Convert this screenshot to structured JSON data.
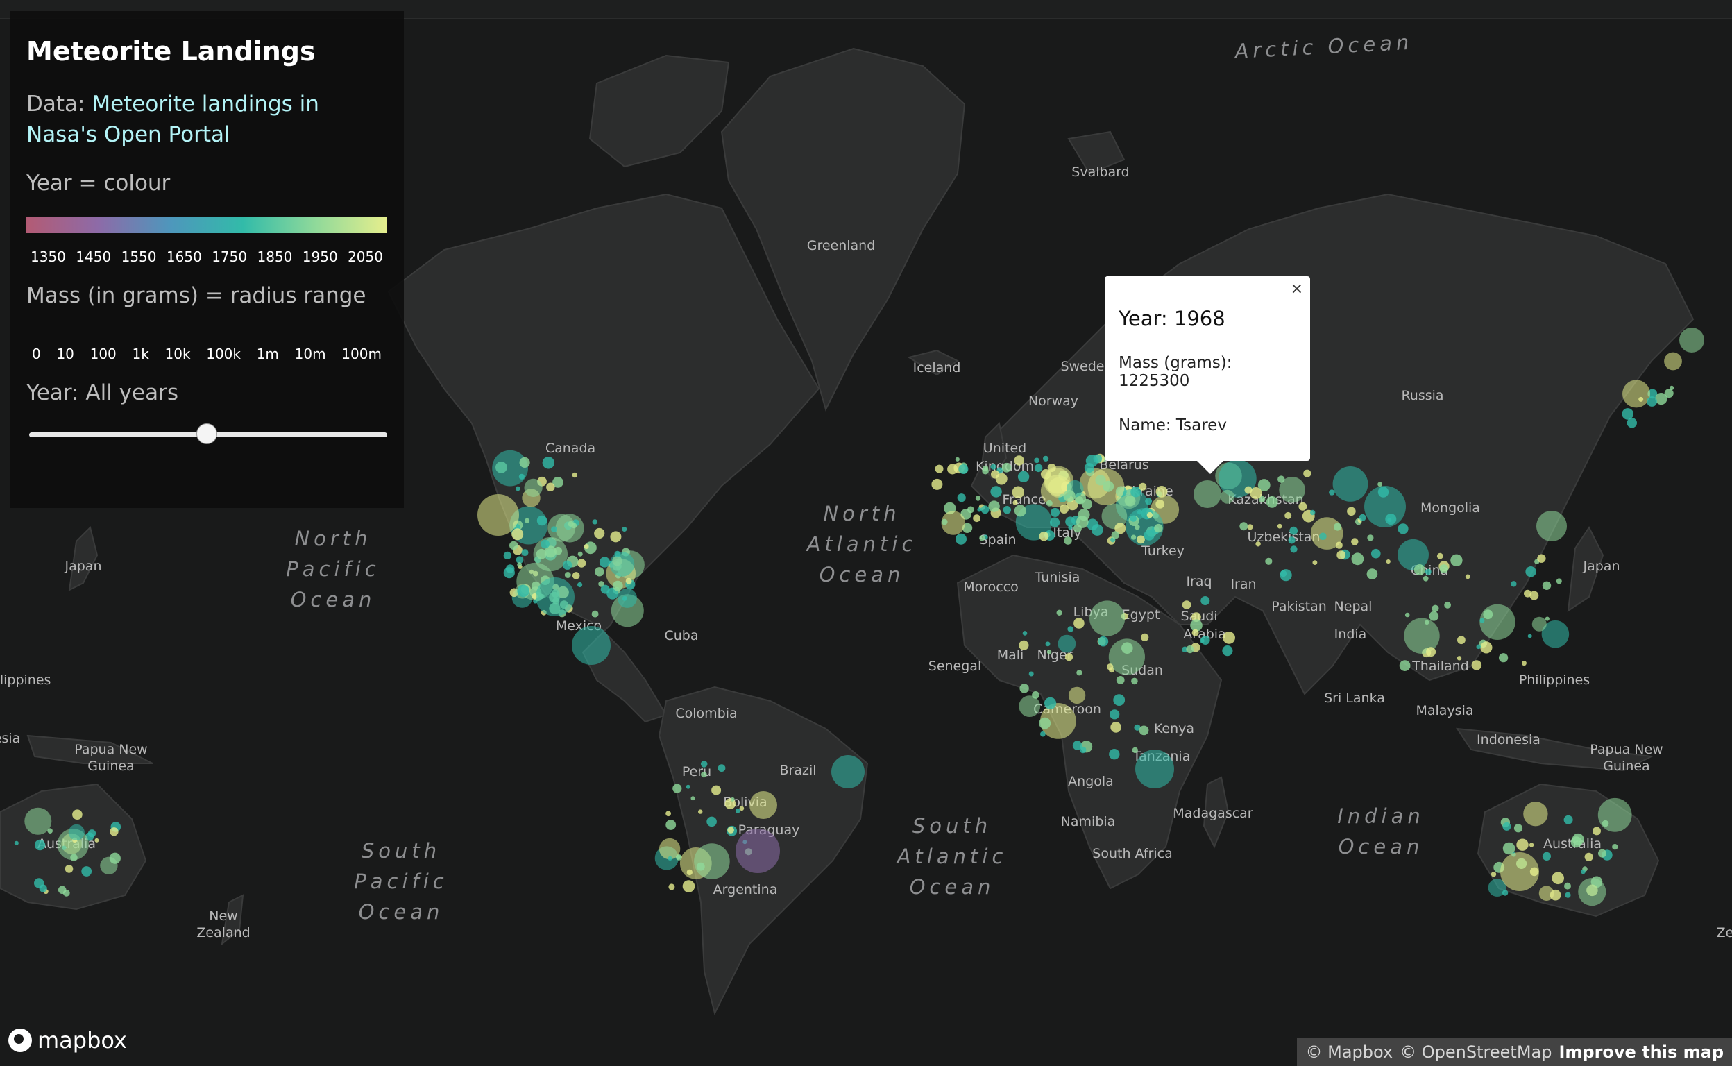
{
  "panel": {
    "title": "Meteorite Landings",
    "data_prefix": "Data: ",
    "data_link": "Meteorite landings in Nasa's Open Portal",
    "year_legend": "Year = colour",
    "year_ticks": [
      "1350",
      "1450",
      "1550",
      "1650",
      "1750",
      "1850",
      "1950",
      "2050"
    ],
    "mass_legend": "Mass (in grams) = radius range",
    "mass_ticks": [
      "0",
      "10",
      "100",
      "1k",
      "10k",
      "100k",
      "1m",
      "10m",
      "100m"
    ],
    "year_filter_label": "Year: All years",
    "slider_position": 0.5
  },
  "popup": {
    "close_label": "×",
    "year": "Year: 1968",
    "mass": "Mass (grams): 1225300",
    "name": "Name: Tsarev"
  },
  "map": {
    "oceans": [
      {
        "text": "Arctic Ocean"
      },
      {
        "text": "North"
      },
      {
        "text": "Pacific"
      },
      {
        "text": "Ocean"
      },
      {
        "text": "North"
      },
      {
        "text": "Atlantic"
      },
      {
        "text": "Ocean"
      },
      {
        "text": "South"
      },
      {
        "text": "Pacific"
      },
      {
        "text": "Ocean"
      },
      {
        "text": "South"
      },
      {
        "text": "Atlantic"
      },
      {
        "text": "Ocean"
      },
      {
        "text": "Indian"
      },
      {
        "text": "Ocean"
      }
    ],
    "places": [
      "Svalbard",
      "Greenland",
      "Iceland",
      "Canada",
      "Russia",
      "Kazakhstan",
      "Mongolia",
      "China",
      "Japan",
      "Japan",
      "Uzbekistan",
      "Ukraine",
      "Belarus",
      "Norway",
      "Sweden",
      "United",
      "Kingdom",
      "France",
      "Spain",
      "Italy",
      "Turkey",
      "Iraq",
      "Iran",
      "Tunisia",
      "Morocco",
      "Libya",
      "Egypt",
      "Saudi",
      "Arabia",
      "Pakistan",
      "Nepal",
      "India",
      "Thailand",
      "Sri Lanka",
      "Malaysia",
      "Indonesia",
      "Philippines",
      "ilippines",
      "Papua New",
      "Guinea",
      "Papua New",
      "Guinea",
      "Australia",
      "Australia",
      "New",
      "Zealand",
      "Ze",
      "Mexico",
      "Cuba",
      "Colombia",
      "Peru",
      "Brazil",
      "Bolivia",
      "Paraguay",
      "Argentina",
      "Senegal",
      "Mali",
      "Niger",
      "Sudan",
      "Cameroon",
      "Kenya",
      "Tanzania",
      "Angola",
      "Namibia",
      "Madagascar",
      "South Africa",
      "esia"
    ]
  },
  "attribution": {
    "logo": "mapbox",
    "mapbox": "© Mapbox",
    "osm": "© OpenStreetMap",
    "improve": "Improve this map"
  },
  "colors": {
    "background": "#191a1a",
    "land": "#2c2d2d",
    "panel": "#0e0e0e",
    "link": "#b3f3f6",
    "gradient": [
      "#b35b74",
      "#8d6ba8",
      "#4e97bc",
      "#32bba9",
      "#8fd99a",
      "#e6ee8d"
    ]
  }
}
